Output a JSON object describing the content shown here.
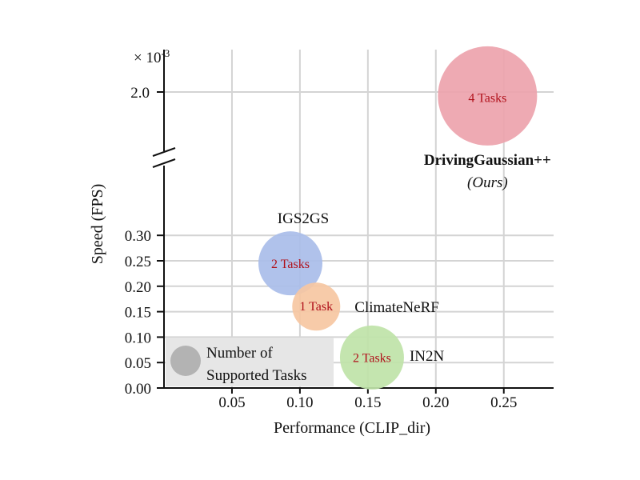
{
  "chart_data": {
    "type": "scatter",
    "xlabel": "Performance (CLIP_dir)",
    "ylabel": "Speed (FPS)",
    "x_ticks": [
      0.05,
      0.1,
      0.15,
      0.2,
      0.25
    ],
    "x_tick_labels": [
      "0.05",
      "0.10",
      "0.15",
      "0.20",
      "0.25"
    ],
    "xlim": [
      0.0,
      0.29
    ],
    "y_ticks_lower": [
      0.0,
      0.05,
      0.1,
      0.15,
      0.2,
      0.25,
      0.3
    ],
    "y_tick_labels_lower": [
      "0.00",
      "0.05",
      "0.10",
      "0.15",
      "0.20",
      "0.25",
      "0.30"
    ],
    "y_tick_upper": 2.0,
    "y_tick_label_upper": "2.0",
    "y_multiplier_label": "× 10",
    "y_multiplier_exponent": "-3",
    "axis_break": true,
    "grid": true,
    "legend": {
      "placement": "bottom-left",
      "line1": "Number of",
      "line2": "Supported Tasks",
      "color": "#b3b3b3"
    },
    "points": [
      {
        "name": "DrivingGaussian++",
        "subtitle": "(Ours)",
        "x": 0.238,
        "y": 1.93,
        "segment": "upper",
        "tasks": 4,
        "label": "4 Tasks",
        "color": "#eda3ac"
      },
      {
        "name": "IGS2GS",
        "x": 0.093,
        "y": 0.245,
        "segment": "lower",
        "tasks": 2,
        "label": "2 Tasks",
        "color": "#a9bde9"
      },
      {
        "name": "ClimateNeRF",
        "x": 0.112,
        "y": 0.16,
        "segment": "lower",
        "tasks": 1,
        "label": "1 Task",
        "color": "#f6c7a2"
      },
      {
        "name": "IN2N",
        "x": 0.153,
        "y": 0.06,
        "segment": "lower",
        "tasks": 2,
        "label": "2 Tasks",
        "color": "#bfe3a8"
      }
    ]
  }
}
